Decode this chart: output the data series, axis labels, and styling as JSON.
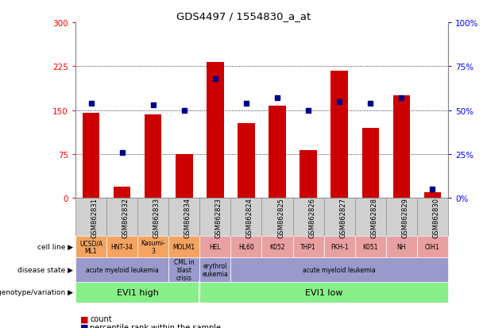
{
  "title": "GDS4497 / 1554830_a_at",
  "samples": [
    "GSM862831",
    "GSM862832",
    "GSM862833",
    "GSM862834",
    "GSM862823",
    "GSM862824",
    "GSM862825",
    "GSM862826",
    "GSM862827",
    "GSM862828",
    "GSM862829",
    "GSM862830"
  ],
  "counts": [
    145,
    20,
    143,
    75,
    232,
    128,
    158,
    82,
    218,
    120,
    175,
    10
  ],
  "percentiles": [
    54,
    26,
    53,
    50,
    68,
    54,
    57,
    50,
    55,
    54,
    57,
    5
  ],
  "ylim_left": [
    0,
    300
  ],
  "ylim_right": [
    0,
    100
  ],
  "yticks_left": [
    0,
    75,
    150,
    225,
    300
  ],
  "yticks_right": [
    0,
    25,
    50,
    75,
    100
  ],
  "ytick_labels_left": [
    "0",
    "75",
    "150",
    "225",
    "300"
  ],
  "ytick_labels_right": [
    "0%",
    "25%",
    "50%",
    "75%",
    "100%"
  ],
  "bar_color": "#cc0000",
  "dot_color": "#00008b",
  "geno_groups": [
    {
      "label": "EVI1 high",
      "start": 0,
      "end": 3,
      "color": "#88ee88"
    },
    {
      "label": "EVI1 low",
      "start": 4,
      "end": 11,
      "color": "#88ee88"
    }
  ],
  "disease_segments": [
    {
      "label": "acute myeloid leukemia",
      "cols": [
        0,
        1,
        2
      ],
      "color": "#9999cc"
    },
    {
      "label": "CML in\nblast\ncrisis",
      "cols": [
        3
      ],
      "color": "#9999cc"
    },
    {
      "label": "erythrol\neukemia",
      "cols": [
        4
      ],
      "color": "#9999cc"
    },
    {
      "label": "acute myeloid leukemia",
      "cols": [
        5,
        6,
        7,
        8,
        9,
        10,
        11
      ],
      "color": "#9999cc"
    }
  ],
  "cell_lines": [
    {
      "label": "UCSD/A\nML1",
      "cols": [
        0
      ],
      "color": "#f4a460"
    },
    {
      "label": "HNT-34",
      "cols": [
        1
      ],
      "color": "#f4a460"
    },
    {
      "label": "Kasumi-\n3",
      "cols": [
        2
      ],
      "color": "#f4a460"
    },
    {
      "label": "MOLM1",
      "cols": [
        3
      ],
      "color": "#f4a460"
    },
    {
      "label": "HEL",
      "cols": [
        4
      ],
      "color": "#e8a0a0"
    },
    {
      "label": "HL60",
      "cols": [
        5
      ],
      "color": "#e8a0a0"
    },
    {
      "label": "K052",
      "cols": [
        6
      ],
      "color": "#e8a0a0"
    },
    {
      "label": "THP1",
      "cols": [
        7
      ],
      "color": "#e8a0a0"
    },
    {
      "label": "FKH-1",
      "cols": [
        8
      ],
      "color": "#e8a0a0"
    },
    {
      "label": "K051",
      "cols": [
        9
      ],
      "color": "#e8a0a0"
    },
    {
      "label": "NH",
      "cols": [
        10
      ],
      "color": "#e8a0a0"
    },
    {
      "label": "OIH1",
      "cols": [
        11
      ],
      "color": "#e8a0a0"
    }
  ],
  "row_labels": [
    "genotype/variation",
    "disease state",
    "cell line"
  ],
  "legend_count_label": "count",
  "legend_pct_label": "percentile rank within the sample",
  "xticklabel_bg": "#d0d0d0",
  "plot_bg": "#ffffff",
  "fig_bg": "#ffffff"
}
